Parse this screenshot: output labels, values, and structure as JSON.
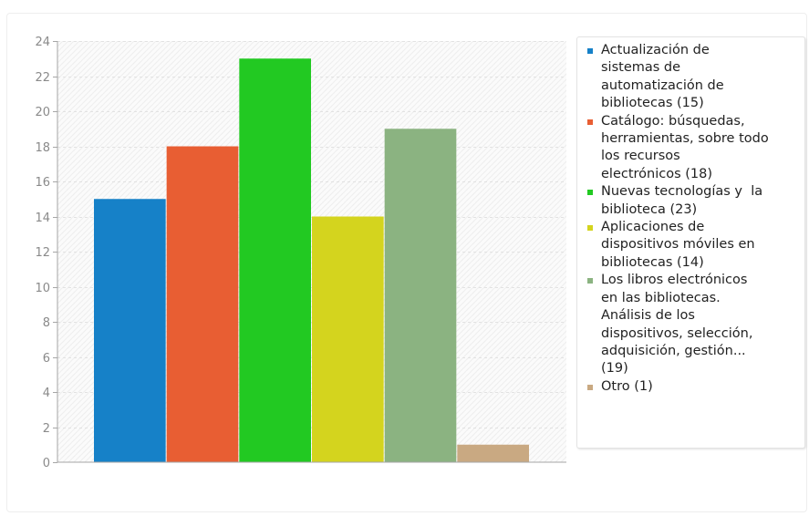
{
  "chart_data": {
    "type": "bar",
    "categories": [
      "Actualización de sistemas de automatización de bibliotecas (15)",
      "Catálogo: búsquedas, herramientas, sobre todo los recursos electrónicos (18)",
      "Nuevas tecnologías y  la biblioteca (23)",
      "Aplicaciones de dispositivos móviles en bibliotecas (14)",
      "Los libros electrónicos en las bibliotecas. Análisis de los dispositivos, selección, adquisición, gestión... (19)",
      "Otro (1)"
    ],
    "values": [
      15,
      18,
      23,
      14,
      19,
      1
    ],
    "colors": [
      "#1681c8",
      "#e85e33",
      "#22c922",
      "#d4d41e",
      "#8bb381",
      "#c9a982"
    ],
    "ylim": [
      0,
      24
    ],
    "yticks": [
      "0",
      "2",
      "4",
      "6",
      "8",
      "10",
      "12",
      "14",
      "16",
      "18",
      "20",
      "22",
      "24"
    ],
    "grid": true,
    "legend_position": "right",
    "title": "",
    "xlabel": "",
    "ylabel": ""
  },
  "legend": {
    "items": [
      {
        "label": "Actualización de\nsistemas de\nautomatización de\nbibliotecas (15)",
        "color": "#1681c8"
      },
      {
        "label": "Catálogo: búsquedas,\nherramientas, sobre todo\nlos recursos\nelectrónicos (18)",
        "color": "#e85e33"
      },
      {
        "label": "Nuevas tecnologías y  la\nbiblioteca (23)",
        "color": "#22c922"
      },
      {
        "label": "Aplicaciones de\ndispositivos móviles en\nbibliotecas (14)",
        "color": "#d4d41e"
      },
      {
        "label": "Los libros electrónicos\nen las bibliotecas.\nAnálisis de los\ndispositivos, selección,\nadquisición, gestión...\n(19)",
        "color": "#8bb381"
      },
      {
        "label": "Otro (1)",
        "color": "#c9a982"
      }
    ]
  }
}
